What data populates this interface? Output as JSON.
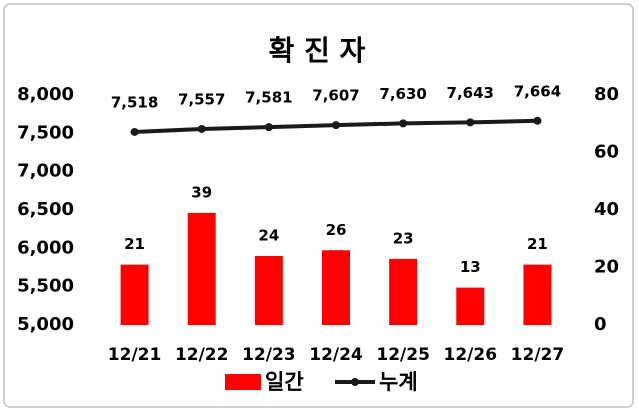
{
  "chart_data": {
    "type": "combo",
    "title": "확 진 자",
    "categories": [
      "12/21",
      "12/22",
      "12/23",
      "12/24",
      "12/25",
      "12/26",
      "12/27"
    ],
    "series": [
      {
        "name": "일간",
        "type": "bar",
        "axis": "y2",
        "color": "#ff0000",
        "values": [
          21,
          39,
          24,
          26,
          23,
          13,
          21
        ]
      },
      {
        "name": "누계",
        "type": "line",
        "axis": "y",
        "color": "#1a1a1a",
        "values": [
          7518,
          7557,
          7581,
          7607,
          7630,
          7643,
          7664
        ],
        "value_labels": [
          "7,518",
          "7,557",
          "7,581",
          "7,607",
          "7,630",
          "7,643",
          "7,664"
        ]
      }
    ],
    "ylim": [
      5000,
      8000
    ],
    "yticks": [
      {
        "value": 5000,
        "label": "5,000"
      },
      {
        "value": 5500,
        "label": "5,500"
      },
      {
        "value": 6000,
        "label": "6,000"
      },
      {
        "value": 6500,
        "label": "6,500"
      },
      {
        "value": 7000,
        "label": "7,000"
      },
      {
        "value": 7500,
        "label": "7,500"
      },
      {
        "value": 8000,
        "label": "8,000"
      }
    ],
    "y2lim": [
      0,
      80
    ],
    "y2ticks": [
      0,
      20,
      40,
      60,
      80
    ],
    "grid": false,
    "legend": "bottom"
  }
}
